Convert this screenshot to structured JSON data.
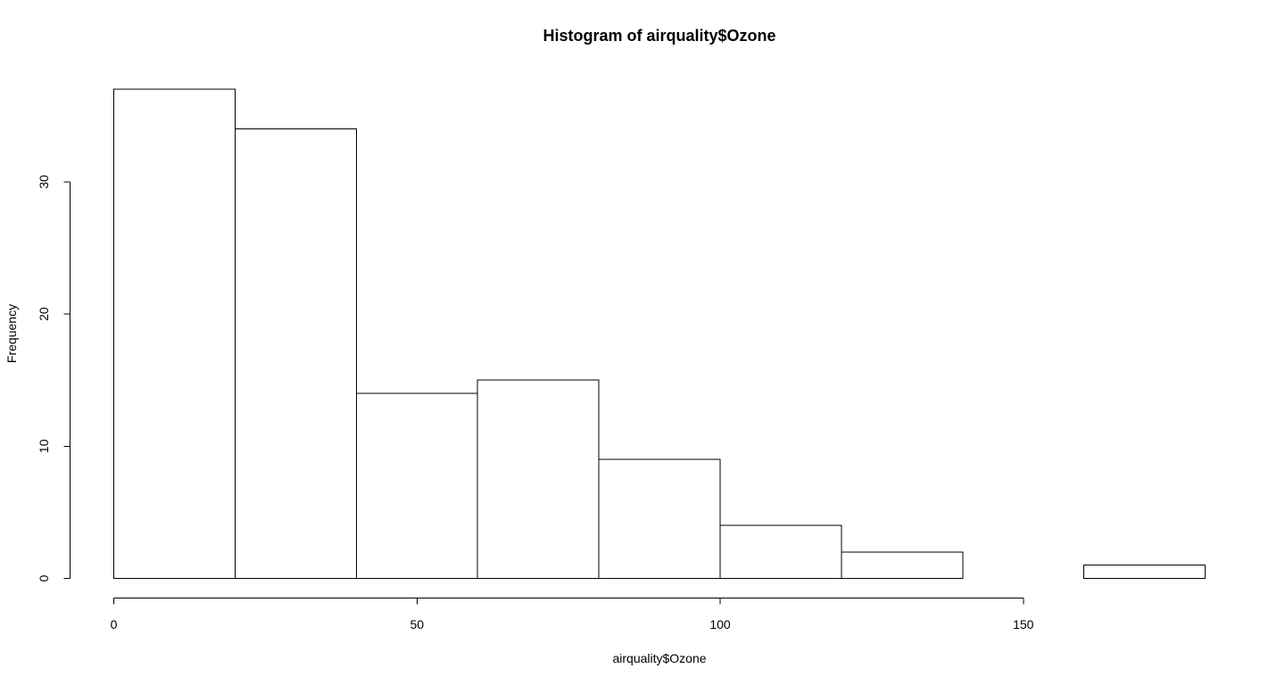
{
  "chart_data": {
    "type": "bar",
    "title": "Histogram of airquality$Ozone",
    "xlabel": "airquality$Ozone",
    "ylabel": "Frequency",
    "bins": [
      {
        "start": 0,
        "end": 20,
        "count": 37
      },
      {
        "start": 20,
        "end": 40,
        "count": 34
      },
      {
        "start": 40,
        "end": 60,
        "count": 14
      },
      {
        "start": 60,
        "end": 80,
        "count": 15
      },
      {
        "start": 80,
        "end": 100,
        "count": 9
      },
      {
        "start": 100,
        "end": 120,
        "count": 4
      },
      {
        "start": 120,
        "end": 140,
        "count": 2
      },
      {
        "start": 140,
        "end": 160,
        "count": 0
      },
      {
        "start": 160,
        "end": 180,
        "count": 1
      }
    ],
    "xlim": [
      0,
      180
    ],
    "ylim": [
      0,
      37
    ],
    "x_ticks": [
      0,
      50,
      100,
      150
    ],
    "y_ticks": [
      0,
      10,
      20,
      30
    ],
    "grid": false,
    "colors": {
      "bar_fill": "#ffffff",
      "bar_stroke": "#000000"
    }
  }
}
